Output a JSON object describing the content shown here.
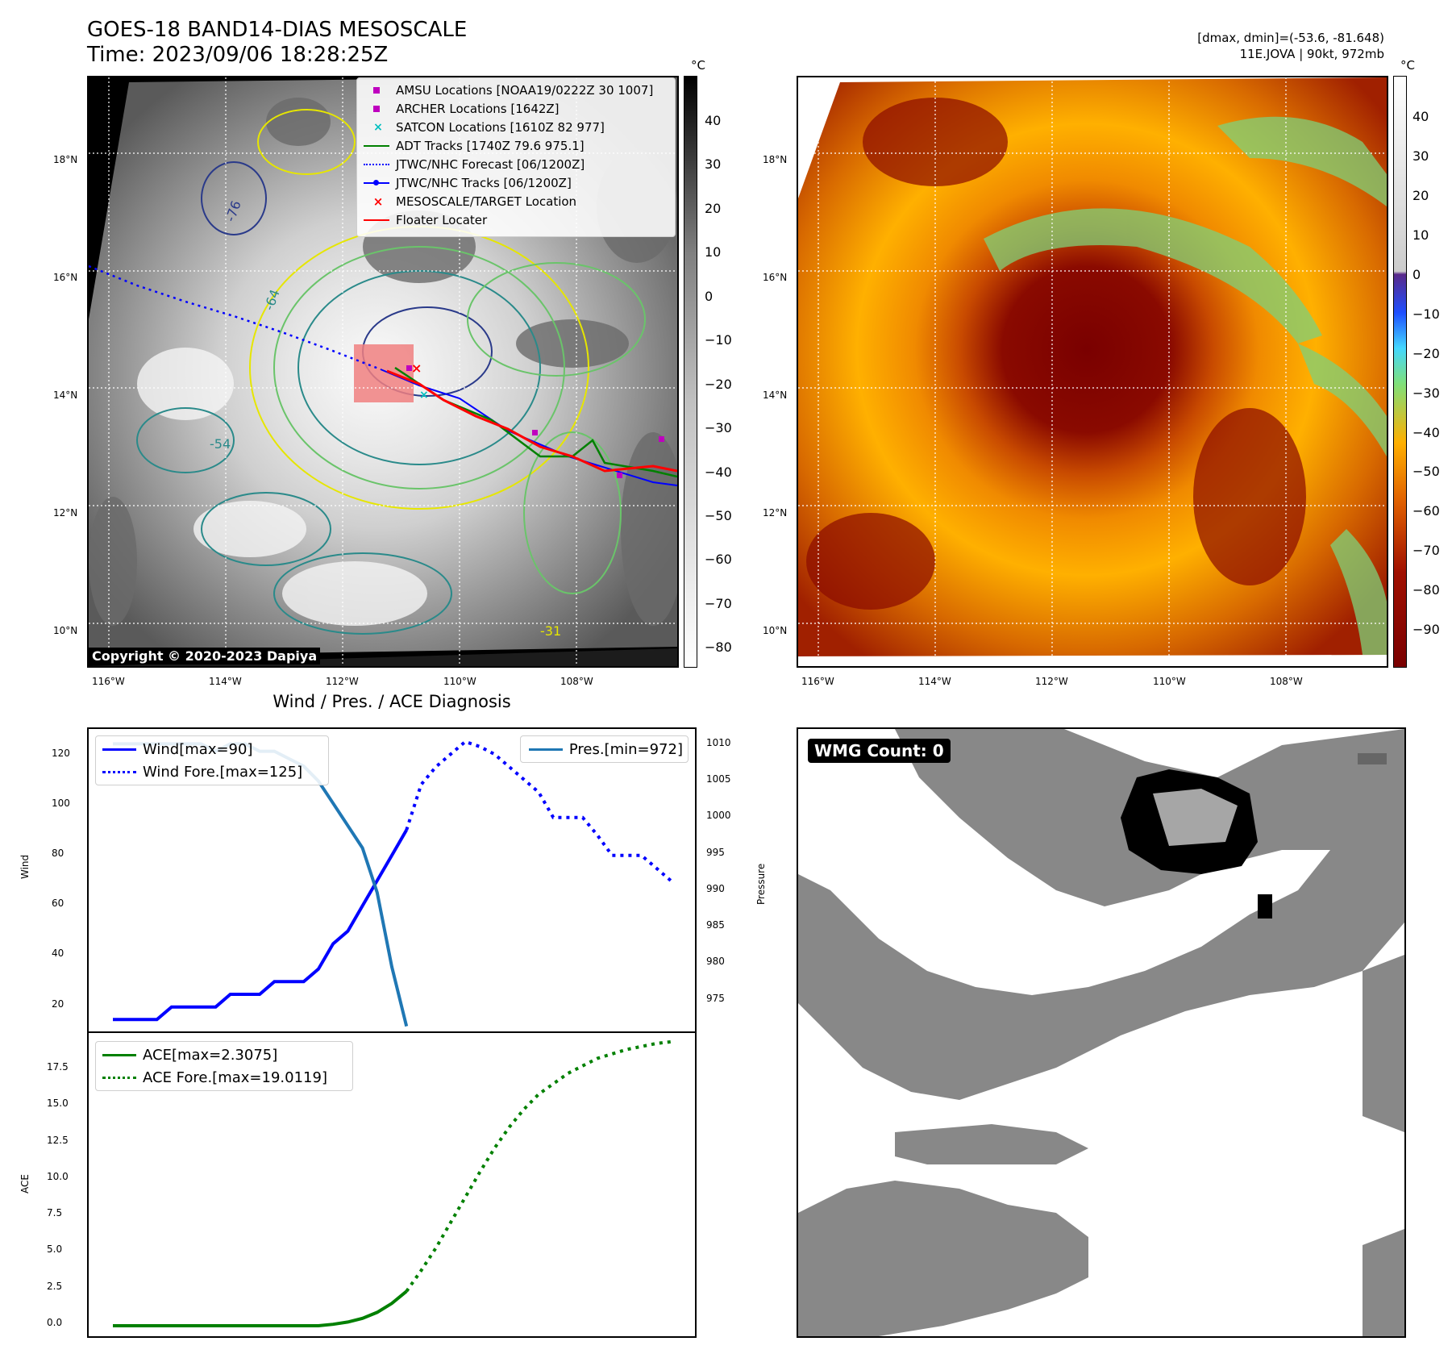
{
  "header": {
    "title_line1": "GOES-18 BAND14-DIAS MESOSCALE",
    "title_line2": "Time: 2023/09/06 18:28:25Z",
    "right_line1": "[dmax, dmin]=(-53.6, -81.648)",
    "right_line2": "11E.JOVA | 90kt, 972mb"
  },
  "map": {
    "lon_labels": [
      "116°W",
      "114°W",
      "112°W",
      "110°W",
      "108°W"
    ],
    "lat_labels": [
      "18°N",
      "16°N",
      "14°N",
      "12°N",
      "10°N"
    ],
    "colorbar_unit": "°C",
    "gray_colorbar_ticks": [
      "40",
      "30",
      "20",
      "10",
      "0",
      "−10",
      "−20",
      "−30",
      "−40",
      "−50",
      "−60",
      "−70",
      "−80"
    ],
    "color_colorbar_ticks": [
      "40",
      "30",
      "20",
      "10",
      "0",
      "−10",
      "−20",
      "−30",
      "−40",
      "−50",
      "−60",
      "−70",
      "−80",
      "−90"
    ],
    "contour_labels": [
      "-64",
      "-76",
      "-54",
      "-31"
    ],
    "copyright": "Copyright © 2020-2023 Dapiya",
    "legend": [
      {
        "label": "AMSU Locations [NOAA19/0222Z 30 1007]",
        "color": "#bf00bf",
        "marker": "square"
      },
      {
        "label": "ARCHER Locations [1642Z]",
        "color": "#bf00bf",
        "marker": "square"
      },
      {
        "label": "SATCON Locations [1610Z 82 977]",
        "color": "#00bfbf",
        "marker": "x"
      },
      {
        "label": "ADT Tracks [1740Z 79.6 975.1]",
        "color": "#008000",
        "marker": "line"
      },
      {
        "label": "JTWC/NHC Forecast [06/1200Z]",
        "color": "#0000ff",
        "marker": "dotted"
      },
      {
        "label": "JTWC/NHC Tracks [06/1200Z]",
        "color": "#0000ff",
        "marker": "line-dot"
      },
      {
        "label": "MESOSCALE/TARGET Location",
        "color": "#ff0000",
        "marker": "x"
      },
      {
        "label": "Floater Locater",
        "color": "#ff0000",
        "marker": "line"
      }
    ]
  },
  "diagnosis": {
    "title": "Wind / Pres. / ACE Diagnosis",
    "wind_axis_label": "Wind",
    "pressure_axis_label": "Pressure",
    "ace_axis_label": "ACE",
    "wind_legend": [
      "Wind[max=90]",
      "Wind Fore.[max=125]"
    ],
    "pres_legend": "Pres.[min=972]",
    "ace_legend": [
      "ACE[max=2.3075]",
      "ACE Fore.[max=19.0119]"
    ],
    "wind_ticks": [
      "120",
      "100",
      "80",
      "60",
      "40",
      "20"
    ],
    "pres_ticks": [
      "1010",
      "1005",
      "1000",
      "995",
      "990",
      "985",
      "980",
      "975"
    ],
    "ace_ticks": [
      "17.5",
      "15.0",
      "12.5",
      "10.0",
      "7.5",
      "5.0",
      "2.5",
      "0.0"
    ],
    "wmg_count": "WMG Count: 0"
  },
  "chart_data": [
    {
      "type": "line",
      "title": "Wind / Pres. / ACE Diagnosis",
      "ylabel": "Wind",
      "y2label": "Pressure",
      "ylim": [
        10,
        130
      ],
      "y2lim": [
        971.2,
        1012.0
      ],
      "x_index": [
        0,
        1,
        2,
        3,
        4,
        5,
        6,
        7,
        8,
        9,
        10,
        11,
        12,
        13,
        14,
        15,
        16,
        17,
        18,
        19,
        20,
        21,
        22,
        23,
        24,
        25,
        26,
        27,
        28,
        29,
        30,
        31,
        32,
        33,
        34,
        35,
        36,
        37,
        38
      ],
      "series": [
        {
          "name": "Wind[max=90]",
          "color": "#0000ff",
          "style": "solid",
          "x": [
            0,
            1,
            2,
            3,
            4,
            5,
            6,
            7,
            8,
            9,
            10,
            11,
            12,
            13,
            14,
            15,
            16,
            17,
            18,
            19,
            20
          ],
          "values": [
            15,
            15,
            15,
            15,
            20,
            20,
            20,
            20,
            25,
            25,
            25,
            30,
            30,
            30,
            35,
            45,
            50,
            60,
            70,
            80,
            90
          ]
        },
        {
          "name": "Wind Fore.[max=125]",
          "color": "#0000ff",
          "style": "dotted",
          "x": [
            20,
            21,
            22,
            23,
            24,
            25,
            26,
            27,
            28,
            29,
            30,
            31,
            32,
            33,
            34,
            35,
            36,
            37,
            38
          ],
          "values": [
            90,
            108,
            115,
            120,
            125,
            123,
            120,
            115,
            110,
            105,
            95,
            95,
            95,
            88,
            80,
            80,
            80,
            75,
            70
          ]
        },
        {
          "name": "Pres.[min=972]",
          "color": "#1f77b4",
          "style": "solid",
          "axis": "right",
          "x": [
            0,
            1,
            2,
            3,
            4,
            5,
            6,
            7,
            8,
            9,
            10,
            11,
            12,
            13,
            14,
            15,
            16,
            17,
            18,
            19,
            20
          ],
          "values": [
            1010,
            1010,
            1010,
            1010,
            1010,
            1010,
            1010,
            1009,
            1010,
            1010,
            1009,
            1009,
            1008,
            1007,
            1005,
            1002,
            999,
            996,
            990,
            980,
            972
          ]
        }
      ]
    },
    {
      "type": "line",
      "ylabel": "ACE",
      "ylim": [
        -0.7,
        19.6
      ],
      "series": [
        {
          "name": "ACE[max=2.3075]",
          "color": "#008000",
          "style": "solid",
          "x": [
            0,
            2,
            4,
            6,
            8,
            10,
            12,
            14,
            15,
            16,
            17,
            18,
            19,
            20
          ],
          "values": [
            0,
            0,
            0,
            0,
            0,
            0,
            0,
            0,
            0.1,
            0.25,
            0.5,
            0.9,
            1.5,
            2.3075
          ]
        },
        {
          "name": "ACE Fore.[max=19.0119]",
          "color": "#008000",
          "style": "dotted",
          "x": [
            20,
            21,
            22,
            23,
            24,
            25,
            26,
            27,
            28,
            29,
            30,
            31,
            32,
            33,
            34,
            35,
            36,
            37,
            38
          ],
          "values": [
            2.3075,
            3.7,
            5.2,
            6.9,
            8.6,
            10.3,
            11.9,
            13.3,
            14.5,
            15.5,
            16.2,
            16.9,
            17.4,
            17.9,
            18.2,
            18.5,
            18.7,
            18.9,
            19.0119
          ]
        }
      ]
    }
  ]
}
